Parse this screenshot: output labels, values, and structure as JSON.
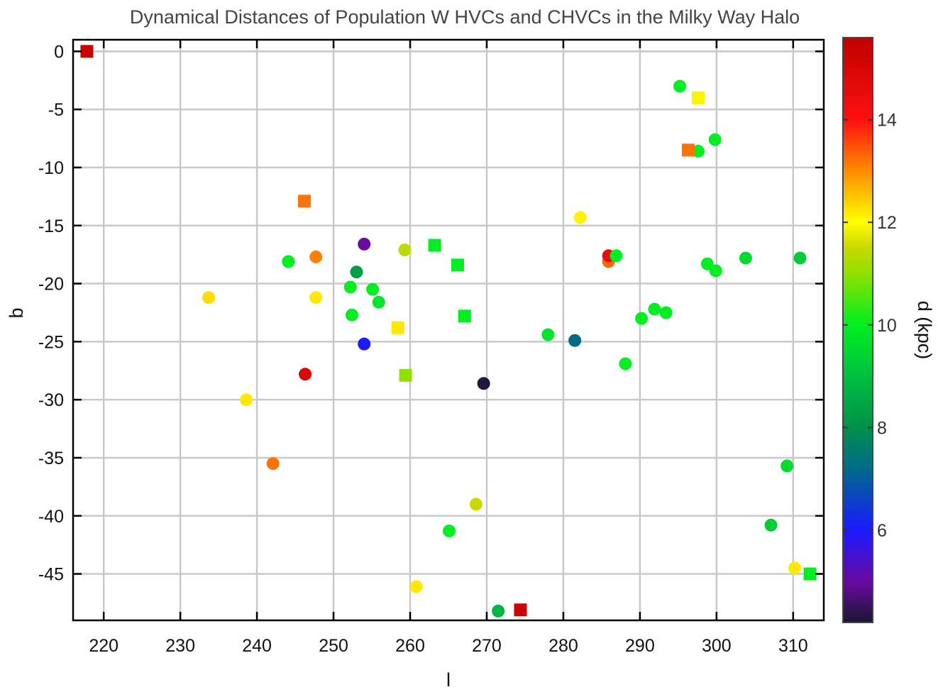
{
  "chart_data": {
    "type": "scatter",
    "title": "Dynamical Distances of Population W HVCs and CHVCs in the Milky Way Halo",
    "xlabel": "l",
    "ylabel": "b",
    "colorbar_label": "d (kpc)",
    "xlim": [
      216,
      314
    ],
    "ylim": [
      -49,
      1
    ],
    "x_ticks": [
      220,
      230,
      240,
      250,
      260,
      270,
      280,
      290,
      300,
      310
    ],
    "x_tick_labels": [
      "220",
      "230",
      "240",
      "250",
      "260",
      "270",
      "280",
      "290",
      "300",
      "310"
    ],
    "y_ticks": [
      0,
      -5,
      -10,
      -15,
      -20,
      -25,
      -30,
      -35,
      -40,
      -45
    ],
    "y_tick_labels": [
      "0",
      "-5",
      "-10",
      "-15",
      "-20",
      "-25",
      "-30",
      "-35",
      "-40",
      "-45"
    ],
    "grid": true,
    "color_range": [
      4.2,
      15.6
    ],
    "colorbar_ticks": [
      6,
      8,
      10,
      12,
      14
    ],
    "colorbar_tick_labels": [
      "6",
      "8",
      "10",
      "12",
      "14"
    ],
    "colormap": [
      [
        4.2,
        "#1a1633"
      ],
      [
        5.0,
        "#6a0aa0"
      ],
      [
        6.0,
        "#1a1aff"
      ],
      [
        7.2,
        "#006a8a"
      ],
      [
        8.0,
        "#00904a"
      ],
      [
        9.0,
        "#00c040"
      ],
      [
        10.0,
        "#00ee22"
      ],
      [
        11.0,
        "#90e000"
      ],
      [
        11.5,
        "#c8d800"
      ],
      [
        12.0,
        "#ffff00"
      ],
      [
        13.0,
        "#ff8c00"
      ],
      [
        14.0,
        "#ff1010"
      ],
      [
        15.6,
        "#c00000"
      ]
    ],
    "series": [
      {
        "marker": "circle",
        "points": [
          {
            "x": 233.7,
            "y": -21.2,
            "d": 12.3
          },
          {
            "x": 238.6,
            "y": -30.0,
            "d": 12.2
          },
          {
            "x": 242.1,
            "y": -35.5,
            "d": 13.2
          },
          {
            "x": 244.1,
            "y": -18.1,
            "d": 10.0
          },
          {
            "x": 246.3,
            "y": -27.8,
            "d": 15.0
          },
          {
            "x": 247.7,
            "y": -17.7,
            "d": 13.1
          },
          {
            "x": 247.7,
            "y": -21.2,
            "d": 12.2
          },
          {
            "x": 252.2,
            "y": -20.3,
            "d": 10.0
          },
          {
            "x": 252.4,
            "y": -22.7,
            "d": 10.0
          },
          {
            "x": 253.0,
            "y": -19.0,
            "d": 8.3
          },
          {
            "x": 254.0,
            "y": -16.6,
            "d": 5.0
          },
          {
            "x": 254.0,
            "y": -25.2,
            "d": 6.0
          },
          {
            "x": 255.1,
            "y": -20.5,
            "d": 10.0
          },
          {
            "x": 255.9,
            "y": -21.6,
            "d": 9.8
          },
          {
            "x": 259.3,
            "y": -17.1,
            "d": 11.4
          },
          {
            "x": 260.8,
            "y": -46.1,
            "d": 12.2
          },
          {
            "x": 265.1,
            "y": -41.3,
            "d": 10.0
          },
          {
            "x": 268.6,
            "y": -39.0,
            "d": 11.5
          },
          {
            "x": 269.6,
            "y": -28.6,
            "d": 4.3
          },
          {
            "x": 271.5,
            "y": -48.2,
            "d": 8.8
          },
          {
            "x": 278.0,
            "y": -24.4,
            "d": 9.8
          },
          {
            "x": 281.5,
            "y": -24.9,
            "d": 7.2
          },
          {
            "x": 282.2,
            "y": -14.3,
            "d": 12.1
          },
          {
            "x": 285.9,
            "y": -18.1,
            "d": 13.3
          },
          {
            "x": 285.9,
            "y": -17.6,
            "d": 14.5
          },
          {
            "x": 286.9,
            "y": -17.6,
            "d": 10.0
          },
          {
            "x": 288.1,
            "y": -26.9,
            "d": 10.0
          },
          {
            "x": 290.2,
            "y": -23.0,
            "d": 10.0
          },
          {
            "x": 291.9,
            "y": -22.2,
            "d": 10.0
          },
          {
            "x": 293.4,
            "y": -22.5,
            "d": 10.0
          },
          {
            "x": 295.2,
            "y": -3.0,
            "d": 10.0
          },
          {
            "x": 297.6,
            "y": -8.6,
            "d": 10.0
          },
          {
            "x": 298.8,
            "y": -18.3,
            "d": 10.0
          },
          {
            "x": 299.8,
            "y": -7.6,
            "d": 10.0
          },
          {
            "x": 299.9,
            "y": -18.9,
            "d": 10.0
          },
          {
            "x": 303.8,
            "y": -17.8,
            "d": 9.6
          },
          {
            "x": 307.1,
            "y": -40.8,
            "d": 9.3
          },
          {
            "x": 309.2,
            "y": -35.7,
            "d": 9.6
          },
          {
            "x": 310.2,
            "y": -44.5,
            "d": 12.2
          },
          {
            "x": 310.9,
            "y": -17.8,
            "d": 9.3
          }
        ]
      },
      {
        "marker": "square",
        "points": [
          {
            "x": 217.8,
            "y": 0.0,
            "d": 15.3
          },
          {
            "x": 246.2,
            "y": -12.9,
            "d": 13.2
          },
          {
            "x": 258.4,
            "y": -23.8,
            "d": 12.2
          },
          {
            "x": 259.4,
            "y": -27.9,
            "d": 11.0
          },
          {
            "x": 263.2,
            "y": -16.7,
            "d": 10.0
          },
          {
            "x": 266.2,
            "y": -18.4,
            "d": 10.0
          },
          {
            "x": 267.1,
            "y": -22.8,
            "d": 10.0
          },
          {
            "x": 274.4,
            "y": -48.1,
            "d": 15.3
          },
          {
            "x": 296.3,
            "y": -8.5,
            "d": 13.2
          },
          {
            "x": 297.6,
            "y": -4.0,
            "d": 12.1
          },
          {
            "x": 312.2,
            "y": -45.0,
            "d": 10.0
          }
        ]
      }
    ]
  }
}
